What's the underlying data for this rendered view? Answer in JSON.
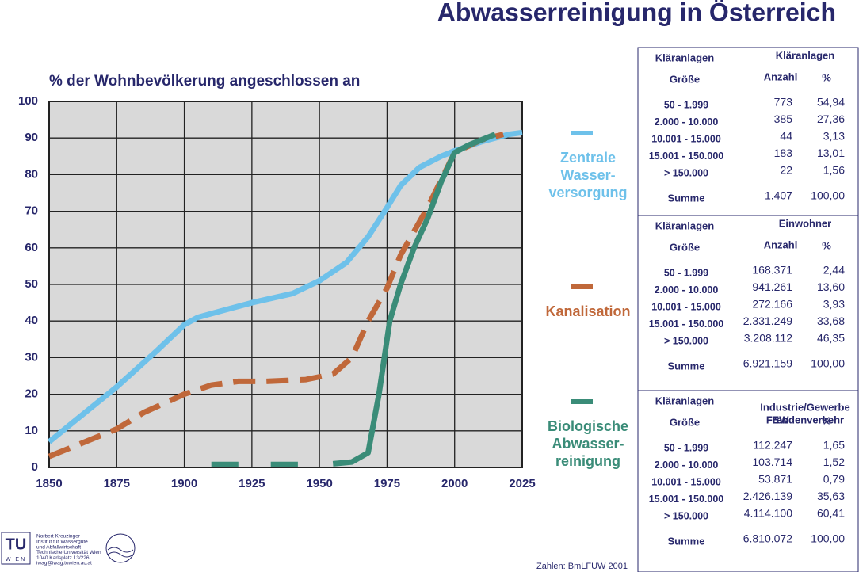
{
  "header": {
    "title": "Abwasserreinigung in Österreich"
  },
  "chart_data": {
    "type": "line",
    "y_label": "% der Wohnbevölkerung angeschlossen an",
    "xlim": [
      1850,
      2025
    ],
    "xticks": [
      1850,
      1875,
      1900,
      1925,
      1950,
      1975,
      2000,
      2025
    ],
    "ylim": [
      0,
      100
    ],
    "yticks": [
      0,
      10,
      20,
      30,
      40,
      50,
      60,
      70,
      80,
      90,
      100
    ],
    "grid": true,
    "background": "#d9d9d9",
    "series": [
      {
        "name": "Zentrale\nWasser-\nversorgung",
        "color": "#6ec1ea",
        "style": "solid",
        "x": [
          1850,
          1860,
          1875,
          1890,
          1900,
          1905,
          1915,
          1925,
          1940,
          1950,
          1960,
          1968,
          1975,
          1980,
          1987,
          1995,
          2000,
          2010,
          2020,
          2025
        ],
        "values": [
          7,
          13,
          22,
          32,
          39,
          41,
          43,
          45,
          47.5,
          51,
          56,
          63,
          71,
          77,
          82,
          85,
          86.5,
          89,
          91,
          91.5
        ]
      },
      {
        "name": "Kanalisation",
        "color": "#c0683a",
        "style": "dashed",
        "x": [
          1850,
          1860,
          1875,
          1885,
          1900,
          1910,
          1920,
          1930,
          1945,
          1955,
          1962,
          1968,
          1975,
          1980,
          1990,
          2000,
          2010,
          2018
        ],
        "values": [
          3,
          6,
          10.5,
          15,
          20,
          22.5,
          23.5,
          23.5,
          24,
          25.5,
          30,
          40,
          49,
          58,
          71,
          86,
          89.5,
          91
        ]
      },
      {
        "name": "Biologische\nAbwasser-\nreinigung",
        "color": "#3a8c78",
        "style": "solid",
        "x": [
          1910,
          1920,
          1926,
          1932,
          1942,
          1948,
          1955,
          1962,
          1968,
          1972,
          1976,
          1980,
          1985,
          1990,
          1995,
          2000,
          2005,
          2010,
          2015
        ],
        "values": [
          0.8,
          0.8,
          null,
          0.8,
          0.8,
          null,
          1,
          1.5,
          4,
          20,
          40,
          50,
          60,
          68,
          78,
          86,
          88,
          89.5,
          91
        ]
      }
    ]
  },
  "tables": [
    {
      "size": [
        "Kläranlagen",
        "Größe"
      ],
      "group": [
        "Kläranlagen"
      ],
      "columns": [
        "Anzahl",
        "%"
      ],
      "rows": [
        [
          "50 - 1.999",
          "773",
          "54,94"
        ],
        [
          "2.000 - 10.000",
          "385",
          "27,36"
        ],
        [
          "10.001  - 15.000",
          "44",
          "3,13"
        ],
        [
          "15.001 - 150.000",
          "183",
          "13,01"
        ],
        [
          "> 150.000",
          "22",
          "1,56"
        ]
      ],
      "total": [
        "Summe",
        "1.407",
        "100,00"
      ]
    },
    {
      "size": [
        "Kläranlagen",
        "Größe"
      ],
      "group": [
        "Einwohner"
      ],
      "columns": [
        "Anzahl",
        "%"
      ],
      "rows": [
        [
          "50 - 1.999",
          "168.371",
          "2,44"
        ],
        [
          "2.000 - 10.000",
          "941.261",
          "13,60"
        ],
        [
          "10.001  - 15.000",
          "272.166",
          "3,93"
        ],
        [
          "15.001 - 150.000",
          "2.331.249",
          "33,68"
        ],
        [
          "> 150.000",
          "3.208.112",
          "46,35"
        ]
      ],
      "total": [
        "Summe",
        "6.921.159",
        "100,00"
      ]
    },
    {
      "size": [
        "Kläranlagen",
        "Größe"
      ],
      "group": [
        "Industrie/Gewerbe",
        "Frendenverkehr"
      ],
      "columns": [
        "EW",
        "%"
      ],
      "rows": [
        [
          "50 - 1.999",
          "112.247",
          "1,65"
        ],
        [
          "2.000 - 10.000",
          "103.714",
          "1,52"
        ],
        [
          "10.001  - 15.000",
          "53.871",
          "0,79"
        ],
        [
          "15.001 - 150.000",
          "2.426.139",
          "35,63"
        ],
        [
          "> 150.000",
          "4.114.100",
          "60,41"
        ]
      ],
      "total": [
        "Summe",
        "6.810.072",
        "100,00"
      ]
    }
  ],
  "footer": {
    "logo": [
      "TU",
      "WIEN"
    ],
    "institute": [
      "Norbert Kreuzinger",
      "Institut für Wassergüte",
      "und Abfallwirtschaft",
      "Technische Universität Wien",
      "1040 Karlsplatz 13/226",
      "iwag@iwag.tuwien.ac.at"
    ],
    "source": "Zahlen: BmLFUW 2001"
  }
}
